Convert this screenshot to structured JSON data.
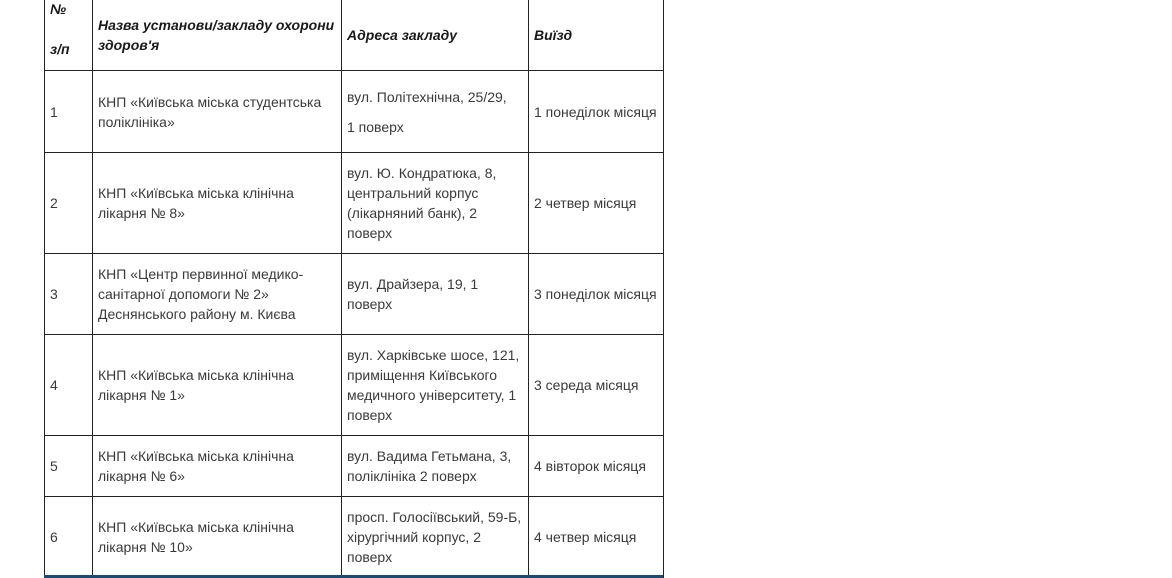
{
  "table": {
    "headers": {
      "number_line1": "№",
      "number_line2": "з/п",
      "name": "Назва установи/закладу охорони здоров'я",
      "address": "Адреса закладу",
      "visit": "Виїзд"
    },
    "rows": [
      {
        "number": "1",
        "name": "КНП «Київська міська студентська поліклініка»",
        "address_line1": "вул. Політехнічна, 25/29,",
        "address_line2": "1 поверх",
        "visit": "1 понеділок місяця"
      },
      {
        "number": "2",
        "name": "КНП «Київська міська клінічна лікарня № 8»",
        "address": "вул. Ю. Кондратюка, 8, центральний корпус (лікарняний банк), 2 поверх",
        "visit": "2 четвер місяця"
      },
      {
        "number": "3",
        "name": "КНП «Центр первинної медико-санітарної допомоги № 2» Деснянського району м. Києва",
        "address": "вул. Драйзера, 19, 1 поверх",
        "visit": "3 понеділок місяця"
      },
      {
        "number": "4",
        "name": "КНП «Київська міська клінічна лікарня № 1»",
        "address": "вул. Харківське шосе, 121, приміщення Київського медичного університету, 1 поверх",
        "visit": "3 середа місяця"
      },
      {
        "number": "5",
        "name": "КНП «Київська міська клінічна лікарня № 6»",
        "address": "вул. Вадима Гетьмана, 3, поліклініка 2 поверх",
        "visit": "4 вівторок місяця"
      },
      {
        "number": "6",
        "name": "КНП «Київська міська клінічна лікарня № 10»",
        "address": "просп. Голосіївський, 59-Б, хірургічний корпус, 2 поверх",
        "visit": "4 четвер місяця"
      }
    ]
  }
}
